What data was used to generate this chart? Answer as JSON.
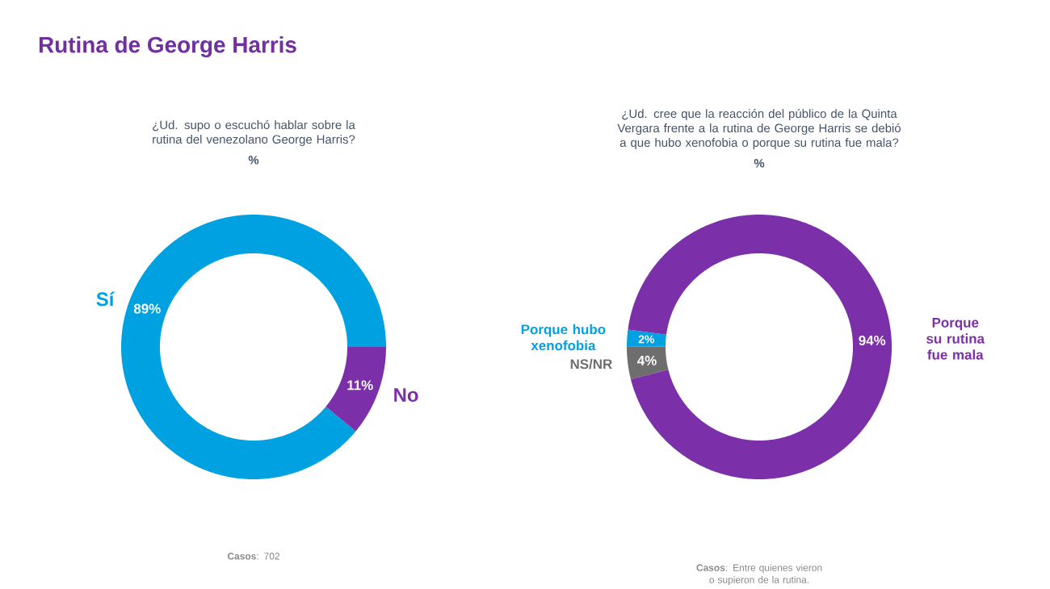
{
  "chart_data": [
    {
      "type": "donut",
      "title": "Rutina de George Harris",
      "subtitle": "¿Ud. supo o escuchó hablar sobre la rutina del venezolano George Harris?",
      "categories": [
        "Sí",
        "No"
      ],
      "values": [
        89,
        11
      ],
      "value_labels": [
        "89%",
        "11%"
      ],
      "colors": [
        "#00a1e0",
        "#7b2fa8"
      ],
      "annotations": [
        "%",
        "**Casos**: 702"
      ]
    },
    {
      "type": "donut",
      "subtitle": "¿Ud. cree que la reacción del público de la Quinta Vergara frente a la rutina de George Harris se debió a que hubo xenofobia o porque su rutina fue mala?",
      "categories": [
        "Porque hubo xenofobia",
        "NS/NR",
        "Porque su rutina fue mala"
      ],
      "values": [
        2,
        4,
        94
      ],
      "value_labels": [
        "2%",
        "4%",
        "94%"
      ],
      "colors": [
        "#00a1e0",
        "#6e6e6e",
        "#7b2fa8"
      ],
      "annotations": [
        "%",
        "**Casos**: Entre quienes vieron o supieron de la rutina."
      ]
    }
  ]
}
